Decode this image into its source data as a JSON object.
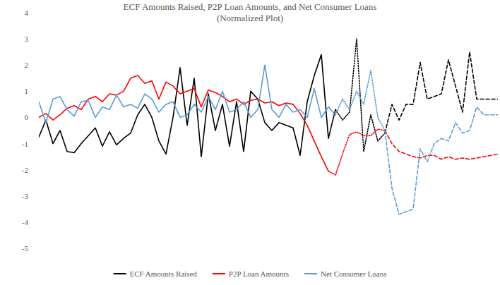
{
  "chart_data": {
    "type": "line",
    "title": "ECF Amounts Raised, P2P Loan Amounts, and Net Consumer Loans",
    "subtitle": "(Normalized Plot)",
    "x": [
      0,
      2,
      4,
      6,
      8,
      10,
      12,
      14,
      16,
      18,
      20,
      22,
      24,
      26,
      28,
      30,
      32,
      34,
      36,
      38,
      40,
      42,
      44,
      46,
      48,
      50,
      52,
      54,
      56,
      58,
      60,
      62,
      64,
      66,
      68,
      70,
      72,
      74,
      76,
      78,
      80,
      82,
      84,
      86,
      88,
      90,
      92,
      94,
      96,
      98,
      100,
      102,
      104,
      106,
      108,
      110,
      112,
      114,
      116,
      118,
      120,
      122,
      124,
      126,
      128,
      130
    ],
    "xlim": [
      0,
      130
    ],
    "ylim": [
      -5,
      4
    ],
    "yticks": [
      -5,
      -4,
      -3,
      -2,
      -1,
      0,
      1,
      2,
      3,
      4
    ],
    "grid": false,
    "legend": "bottom",
    "tick_labels": "y",
    "series": [
      {
        "name": "ECF Amounts Raised",
        "color": "#000000",
        "line_style": "solid",
        "values": [
          -0.75,
          -0.1,
          -1.0,
          -0.5,
          -1.3,
          -1.35,
          -1.0,
          -0.7,
          -0.4,
          -1.1,
          -0.55,
          -1.05,
          -0.8,
          -0.6,
          0.1,
          0.5,
          0.0,
          -0.9,
          -1.4,
          0.0,
          1.9,
          -0.3,
          1.5,
          -1.5,
          0.9,
          -0.5,
          0.5,
          -1.1,
          0.6,
          -1.3,
          1.0,
          0.7,
          -0.2,
          -0.5,
          -0.2,
          -0.3,
          -0.4,
          -1.45,
          0.6,
          1.6,
          2.4,
          -0.8,
          0.3,
          null,
          null,
          null,
          null,
          null,
          null,
          null,
          null,
          null,
          null,
          null,
          null,
          null,
          null,
          null,
          null,
          null,
          null,
          null,
          null,
          null,
          null,
          null
        ]
      },
      {
        "name": "ECF Amounts Raised",
        "color": "#000000",
        "line_style": "dotted",
        "values": [
          null,
          null,
          null,
          null,
          null,
          null,
          null,
          null,
          null,
          null,
          null,
          null,
          null,
          null,
          null,
          null,
          null,
          null,
          null,
          null,
          null,
          null,
          null,
          null,
          null,
          null,
          null,
          null,
          null,
          null,
          null,
          null,
          null,
          null,
          null,
          null,
          null,
          null,
          null,
          null,
          null,
          null,
          0.3,
          -0.1,
          0.2,
          3.0,
          -1.3,
          0.1,
          -0.9,
          -0.6,
          null,
          null,
          null,
          null,
          null,
          null,
          null,
          null,
          null,
          null,
          null,
          null,
          null,
          null,
          null,
          null
        ]
      },
      {
        "name": "ECF Amounts Raised",
        "color": "#000000",
        "line_style": "dashed",
        "values": [
          null,
          null,
          null,
          null,
          null,
          null,
          null,
          null,
          null,
          null,
          null,
          null,
          null,
          null,
          null,
          null,
          null,
          null,
          null,
          null,
          null,
          null,
          null,
          null,
          null,
          null,
          null,
          null,
          null,
          null,
          null,
          null,
          null,
          null,
          null,
          null,
          null,
          null,
          null,
          null,
          null,
          null,
          null,
          null,
          null,
          null,
          null,
          null,
          null,
          -0.6,
          0.5,
          -0.1,
          0.5,
          0.5,
          2.1,
          0.7,
          0.8,
          0.9,
          2.2,
          1.2,
          0.2,
          2.5,
          0.7,
          0.7,
          0.7,
          0.7
        ]
      },
      {
        "name": "P2P Loan Amounts",
        "color": "#ff0000",
        "line_style": "solid",
        "values": [
          0.0,
          0.15,
          -0.1,
          0.1,
          0.35,
          0.45,
          0.3,
          0.7,
          0.8,
          0.6,
          0.9,
          0.85,
          1.0,
          1.5,
          1.6,
          1.3,
          1.4,
          0.7,
          1.35,
          1.2,
          0.9,
          1.0,
          1.1,
          0.4,
          1.05,
          0.95,
          0.8,
          0.6,
          0.7,
          0.5,
          0.65,
          0.7,
          0.55,
          0.6,
          0.45,
          0.55,
          0.5,
          0.15,
          -0.3,
          -0.9,
          -1.5,
          -2.05,
          null,
          null,
          null,
          null,
          null,
          null,
          null,
          null,
          null,
          null,
          null,
          null,
          null,
          null,
          null,
          null,
          null,
          null,
          null,
          null,
          null,
          null,
          null,
          null
        ]
      },
      {
        "name": "P2P Loan Amounts",
        "color": "#ff0000",
        "line_style": "dotted",
        "values": [
          null,
          null,
          null,
          null,
          null,
          null,
          null,
          null,
          null,
          null,
          null,
          null,
          null,
          null,
          null,
          null,
          null,
          null,
          null,
          null,
          null,
          null,
          null,
          null,
          null,
          null,
          null,
          null,
          null,
          null,
          null,
          null,
          null,
          null,
          null,
          null,
          null,
          null,
          null,
          null,
          null,
          -2.05,
          -2.2,
          -1.4,
          -0.65,
          -0.55,
          -0.7,
          -0.7,
          -0.45,
          -0.5,
          null,
          null,
          null,
          null,
          null,
          null,
          null,
          null,
          null,
          null,
          null,
          null,
          null,
          null,
          null,
          null
        ]
      },
      {
        "name": "P2P Loan Amounts",
        "color": "#ff0000",
        "line_style": "dashed",
        "values": [
          null,
          null,
          null,
          null,
          null,
          null,
          null,
          null,
          null,
          null,
          null,
          null,
          null,
          null,
          null,
          null,
          null,
          null,
          null,
          null,
          null,
          null,
          null,
          null,
          null,
          null,
          null,
          null,
          null,
          null,
          null,
          null,
          null,
          null,
          null,
          null,
          null,
          null,
          null,
          null,
          null,
          null,
          null,
          null,
          null,
          null,
          null,
          null,
          null,
          -0.5,
          -1.0,
          -1.3,
          -1.4,
          -1.5,
          -1.55,
          -1.45,
          -1.45,
          -1.6,
          -1.5,
          -1.6,
          -1.55,
          -1.6,
          -1.55,
          -1.5,
          -1.45,
          -1.4
        ]
      },
      {
        "name": "Net Consumer Loans",
        "color": "#5b9bd5",
        "line_style": "solid",
        "values": [
          0.6,
          -0.2,
          0.7,
          0.8,
          0.3,
          0.05,
          0.6,
          0.65,
          0.0,
          0.4,
          0.3,
          0.85,
          0.4,
          0.5,
          0.35,
          0.9,
          0.7,
          0.2,
          0.5,
          0.6,
          0.0,
          0.1,
          0.5,
          0.2,
          0.8,
          0.3,
          1.0,
          0.2,
          0.3,
          0.6,
          0.0,
          0.3,
          2.0,
          0.3,
          0.0,
          0.5,
          0.2,
          0.3,
          0.0,
          1.1,
          0.0,
          0.4,
          0.1,
          null,
          null,
          null,
          null,
          null,
          null,
          null,
          null,
          null,
          null,
          null,
          null,
          null,
          null,
          null,
          null,
          null,
          null,
          null,
          null,
          null,
          null,
          null
        ]
      },
      {
        "name": "Net Consumer Loans",
        "color": "#5b9bd5",
        "line_style": "dotted",
        "values": [
          null,
          null,
          null,
          null,
          null,
          null,
          null,
          null,
          null,
          null,
          null,
          null,
          null,
          null,
          null,
          null,
          null,
          null,
          null,
          null,
          null,
          null,
          null,
          null,
          null,
          null,
          null,
          null,
          null,
          null,
          null,
          null,
          null,
          null,
          null,
          null,
          null,
          null,
          null,
          null,
          null,
          null,
          0.1,
          0.7,
          0.3,
          1.0,
          0.5,
          1.8,
          0.0,
          -0.5,
          null,
          null,
          null,
          null,
          null,
          null,
          null,
          null,
          null,
          null,
          null,
          null,
          null,
          null,
          null,
          null
        ]
      },
      {
        "name": "Net Consumer Loans",
        "color": "#5b9bd5",
        "line_style": "dashed",
        "values": [
          null,
          null,
          null,
          null,
          null,
          null,
          null,
          null,
          null,
          null,
          null,
          null,
          null,
          null,
          null,
          null,
          null,
          null,
          null,
          null,
          null,
          null,
          null,
          null,
          null,
          null,
          null,
          null,
          null,
          null,
          null,
          null,
          null,
          null,
          null,
          null,
          null,
          null,
          null,
          null,
          null,
          null,
          null,
          null,
          null,
          null,
          null,
          null,
          null,
          -0.5,
          -2.7,
          -3.7,
          -3.6,
          -3.5,
          -1.2,
          -1.7,
          -1.0,
          -0.8,
          -0.9,
          -0.2,
          -0.6,
          -0.5,
          0.4,
          0.1,
          0.1,
          0.1
        ]
      }
    ]
  }
}
